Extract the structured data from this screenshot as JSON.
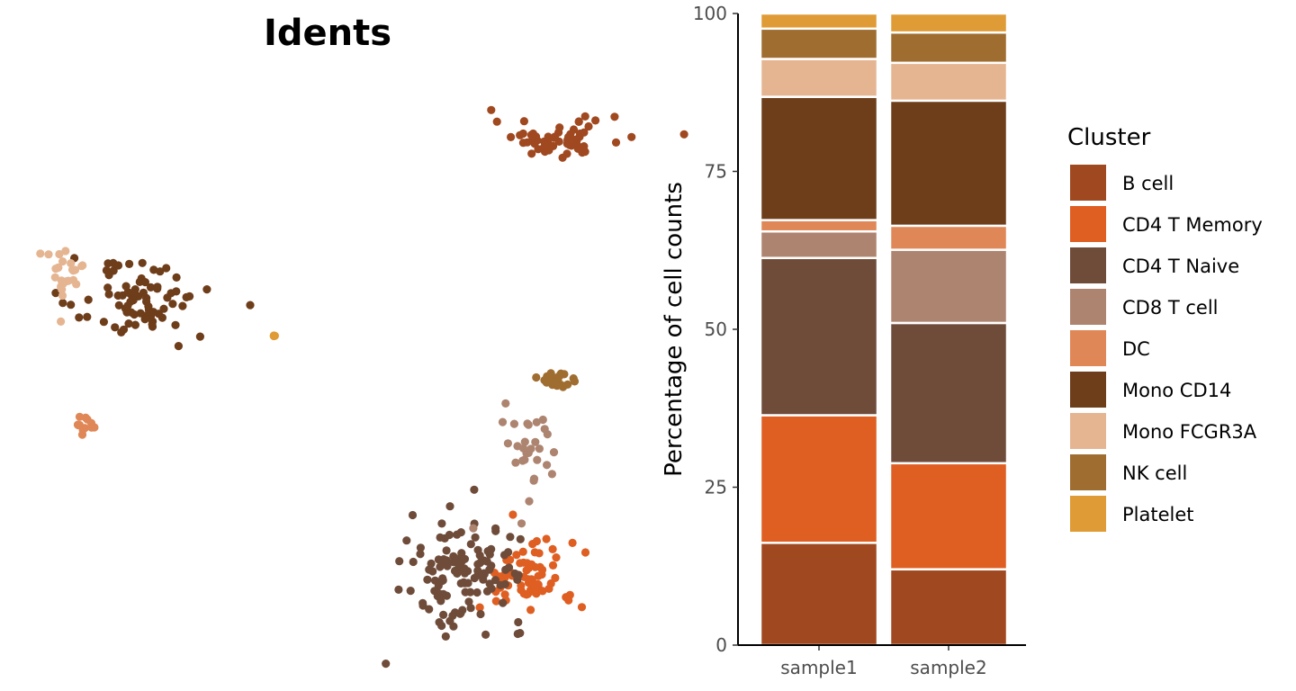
{
  "chart_data": [
    {
      "type": "scatter",
      "title": "Idents",
      "xlabel": "",
      "ylabel": "",
      "grid": false,
      "axes_visible": false,
      "clusters": [
        {
          "name": "B cell",
          "color": "#A0481F",
          "center": [
            12.0,
            9.0
          ],
          "spread": [
            1.2,
            0.4
          ],
          "n": 60
        },
        {
          "name": "CD4 T Memory",
          "color": "#DF5E22",
          "center": [
            10.8,
            -9.3
          ],
          "spread": [
            0.9,
            0.8
          ],
          "n": 70
        },
        {
          "name": "CD4 T Naive",
          "color": "#6F4C3A",
          "center": [
            8.6,
            -9.0
          ],
          "spread": [
            1.1,
            1.1
          ],
          "n": 120
        },
        {
          "name": "CD8 T cell",
          "color": "#AD8470",
          "center": [
            11.0,
            -4.3
          ],
          "spread": [
            0.5,
            1.2
          ],
          "n": 30
        },
        {
          "name": "DC",
          "color": "#DF8757",
          "center": [
            -5.5,
            -2.8
          ],
          "spread": [
            0.2,
            0.2
          ],
          "n": 12
        },
        {
          "name": "Mono CD14",
          "color": "#6E3D1A",
          "center": [
            -3.5,
            2.2
          ],
          "spread": [
            1.3,
            0.8
          ],
          "n": 80
        },
        {
          "name": "Mono FCGR3A",
          "color": "#E5B592",
          "center": [
            -6.3,
            3.4
          ],
          "spread": [
            0.5,
            0.5
          ],
          "n": 25
        },
        {
          "name": "NK cell",
          "color": "#9F6D30",
          "center": [
            11.9,
            -1.1
          ],
          "spread": [
            0.4,
            0.3
          ],
          "n": 20
        },
        {
          "name": "Platelet",
          "color": "#DF9B35",
          "center": [
            1.5,
            0.8
          ],
          "spread": [
            0.03,
            0.03
          ],
          "n": 4
        }
      ]
    },
    {
      "type": "bar",
      "stacked": true,
      "title": "",
      "xlabel": "",
      "ylabel": "Percentage of cell counts",
      "ylim": [
        0,
        100
      ],
      "yticks": [
        0,
        25,
        50,
        75,
        100
      ],
      "categories": [
        "sample1",
        "sample2"
      ],
      "legend_title": "Cluster",
      "legend_position": "right",
      "series": [
        {
          "name": "B cell",
          "color": "#A0481F",
          "values": [
            16.2,
            12.0
          ]
        },
        {
          "name": "CD4 T Memory",
          "color": "#DF5E22",
          "values": [
            20.2,
            16.8
          ]
        },
        {
          "name": "CD4 T Naive",
          "color": "#6F4C3A",
          "values": [
            24.9,
            22.2
          ]
        },
        {
          "name": "CD8 T cell",
          "color": "#AD8470",
          "values": [
            4.2,
            11.6
          ]
        },
        {
          "name": "DC",
          "color": "#DF8757",
          "values": [
            1.8,
            3.8
          ]
        },
        {
          "name": "Mono CD14",
          "color": "#6E3D1A",
          "values": [
            19.5,
            19.8
          ]
        },
        {
          "name": "Mono FCGR3A",
          "color": "#E5B592",
          "values": [
            6.0,
            6.0
          ]
        },
        {
          "name": "NK cell",
          "color": "#9F6D30",
          "values": [
            4.8,
            4.8
          ]
        },
        {
          "name": "Platelet",
          "color": "#DF9B35",
          "values": [
            2.4,
            3.0
          ]
        }
      ]
    }
  ]
}
